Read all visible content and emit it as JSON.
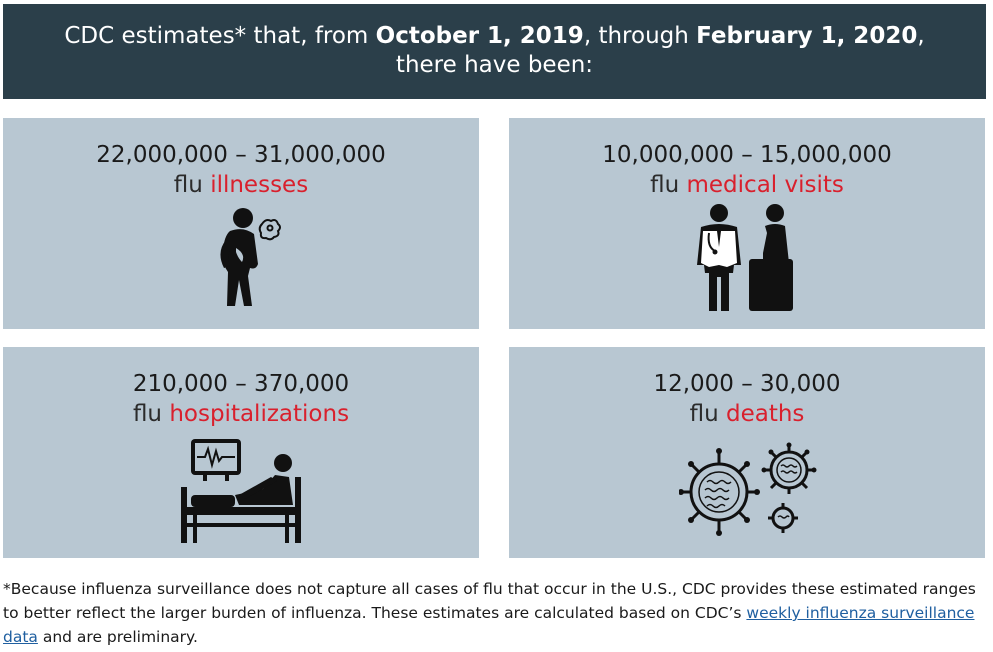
{
  "header": {
    "prefix": "CDC estimates* that, from ",
    "start_date": "October 1, 2019",
    "mid": ", through ",
    "end_date": "February 1, 2020",
    "suffix": ", there have been:"
  },
  "cards": [
    {
      "range": "22,000,000 – 31,000,000",
      "flu": "flu",
      "label": "illnesses",
      "icon": "sick-person-coughing-icon"
    },
    {
      "range": "10,000,000 – 15,000,000",
      "flu": "flu",
      "label": "medical visits",
      "icon": "doctor-patient-icon"
    },
    {
      "range": "210,000 – 370,000",
      "flu": "flu",
      "label": "hospitalizations",
      "icon": "hospital-bed-icon"
    },
    {
      "range": "12,000 – 30,000",
      "flu": "flu",
      "label": "deaths",
      "icon": "virus-icon"
    }
  ],
  "footnote": {
    "text_before": "*Because influenza surveillance does not capture all cases of flu that occur in the U.S., CDC provides these estimated ranges to better reflect the larger burden of influenza. These estimates are calculated based on CDC’s ",
    "link_text": "weekly influenza surveillance data",
    "text_after": " and are preliminary."
  },
  "colors": {
    "header_bg": "#2b3f4a",
    "card_bg": "#b8c7d2",
    "highlight": "#d9202d",
    "link": "#1f5fa0"
  }
}
